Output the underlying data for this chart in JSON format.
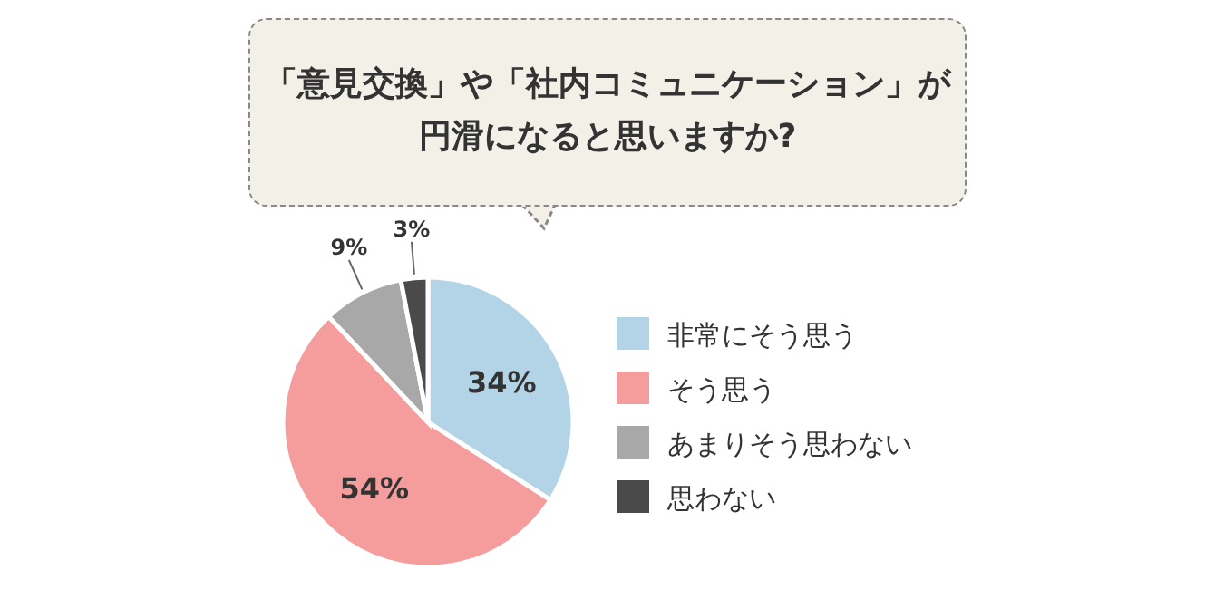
{
  "chart_data": {
    "type": "pie",
    "title": "「意見交換」や「社内コミュニケーション」が円滑になると思いますか?",
    "categories": [
      "非常にそう思う",
      "そう思う",
      "あまりそう思わない",
      "思わない"
    ],
    "values": [
      34,
      54,
      9,
      3
    ],
    "value_labels": [
      "34%",
      "54%",
      "9%",
      "3%"
    ],
    "colors": [
      "#b3d3e6",
      "#f59c9c",
      "#a8a8a8",
      "#4a4a4a"
    ],
    "legend": "right"
  }
}
